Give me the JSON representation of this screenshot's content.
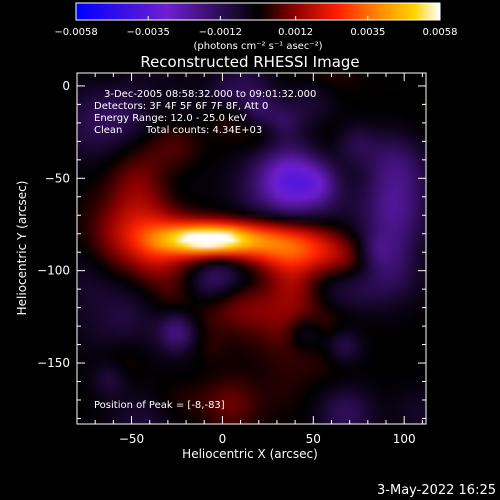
{
  "chart_data": {
    "type": "heatmap",
    "title": "Reconstructed RHESSI Image",
    "xlabel": "Heliocentric X (arcsec)",
    "ylabel": "Heliocentric Y (arcsec)",
    "xlim": [
      -80,
      112
    ],
    "ylim": [
      -183,
      7
    ],
    "x_ticks": [
      -50,
      0,
      50,
      100
    ],
    "y_ticks": [
      0,
      -50,
      -100,
      -150
    ],
    "colorbar": {
      "min": -0.0058,
      "max": 0.0058,
      "ticks": [
        "-0.0058",
        "-0.0035",
        "-0.0012",
        "0.0012",
        "0.0035",
        "0.0058"
      ],
      "tick_values": [
        -0.0058,
        -0.0035,
        -0.0012,
        0.0012,
        0.0035,
        0.0058
      ],
      "units": "(photons cm⁻² s⁻¹ asec⁻²)",
      "colors": [
        "#0000ff",
        "#6f1fd0",
        "#000000",
        "#8b0000",
        "#ff2000",
        "#ff9000",
        "#ffd400",
        "#ffffff"
      ]
    },
    "annotations": {
      "time": "3-Dec-2005 08:58:32.000 to 09:01:32.000",
      "detectors": "Detectors: 3F 4F 5F 6F 7F 8F, Att 0",
      "energy": "Energy Range: 12.0 - 25.0 keV",
      "clean": "Clean",
      "counts": "Total counts: 4.34E+03",
      "peak": "Position of Peak = [-8,-83]"
    },
    "peak": [
      -8,
      -83
    ],
    "source_components": [
      {
        "x": -8,
        "y": -83,
        "amp": 0.0058,
        "sx": 17,
        "sy": 6
      },
      {
        "x": 20,
        "y": -85,
        "amp": 0.003,
        "sx": 22,
        "sy": 9
      },
      {
        "x": 48,
        "y": -90,
        "amp": 0.0022,
        "sx": 18,
        "sy": 10
      },
      {
        "x": 70,
        "y": -95,
        "amp": 0.0016,
        "sx": 14,
        "sy": 9
      },
      {
        "x": -38,
        "y": -80,
        "amp": 0.0014,
        "sx": 13,
        "sy": 10
      },
      {
        "x": -45,
        "y": -55,
        "amp": 0.0012,
        "sx": 12,
        "sy": 14
      },
      {
        "x": 10,
        "y": -118,
        "amp": 0.0009,
        "sx": 30,
        "sy": 10
      },
      {
        "x": 55,
        "y": -130,
        "amp": 0.0007,
        "sx": 14,
        "sy": 8
      },
      {
        "x": -30,
        "y": -170,
        "amp": 0.0006,
        "sx": 18,
        "sy": 8
      }
    ]
  },
  "footer": {
    "date": "3-May-2022 16:25"
  }
}
